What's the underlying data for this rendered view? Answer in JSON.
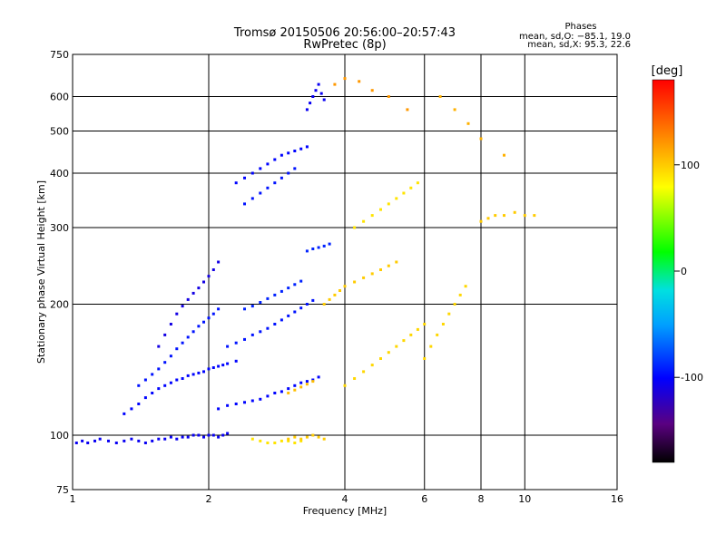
{
  "chart_data": {
    "type": "scatter",
    "title": "Tromsø 20150506 20:56:00–20:57:43",
    "subtitle": "RwPretec (8p)",
    "xlabel": "Frequency [MHz]",
    "ylabel": "Stationary phase Virtual Height [km]",
    "x_scale": "log",
    "y_scale": "log",
    "xlim": [
      1,
      16
    ],
    "ylim": [
      75,
      750
    ],
    "x_ticks": [
      1,
      2,
      4,
      6,
      8,
      10,
      16
    ],
    "y_ticks": [
      75,
      100,
      200,
      300,
      400,
      500,
      600,
      750
    ],
    "grid": true,
    "stats": {
      "heading": "Phases",
      "o_line": "mean, sd,O: −85.1, 19.0",
      "x_line": "mean, sd,X:  95.3, 22.6"
    },
    "colorbar": {
      "label": "[deg]",
      "range": [
        -180,
        180
      ],
      "ticks": [
        100,
        0,
        -100
      ]
    },
    "series": [
      {
        "x": [
          1.02,
          1.05,
          1.08,
          1.12,
          1.15,
          1.2,
          1.25,
          1.3,
          1.35,
          1.4,
          1.45,
          1.5,
          1.55,
          1.6,
          1.65,
          1.7,
          1.75,
          1.8,
          1.85,
          1.9,
          1.95,
          2.0,
          2.05,
          2.1,
          2.15,
          2.2
        ],
        "y": [
          96,
          97,
          96,
          97,
          98,
          97,
          96,
          97,
          98,
          97,
          96,
          97,
          98,
          98,
          99,
          98,
          99,
          99,
          100,
          100,
          99,
          100,
          100,
          99,
          100,
          101
        ],
        "phase": -105
      },
      {
        "x": [
          1.3,
          1.35,
          1.4,
          1.45,
          1.5,
          1.55,
          1.6,
          1.65,
          1.7,
          1.75,
          1.8,
          1.85,
          1.9,
          1.95,
          2.0,
          2.05,
          2.1,
          2.15,
          2.2,
          2.3
        ],
        "y": [
          112,
          115,
          118,
          122,
          125,
          128,
          130,
          132,
          134,
          135,
          137,
          138,
          139,
          140,
          142,
          143,
          144,
          145,
          146,
          148
        ],
        "phase": -100
      },
      {
        "x": [
          1.4,
          1.45,
          1.5,
          1.55,
          1.6,
          1.65,
          1.7,
          1.75,
          1.8,
          1.85,
          1.9,
          1.95,
          2.0,
          2.05,
          2.1
        ],
        "y": [
          130,
          134,
          138,
          142,
          147,
          152,
          158,
          163,
          168,
          173,
          178,
          182,
          186,
          190,
          195
        ],
        "phase": -95
      },
      {
        "x": [
          1.55,
          1.6,
          1.65,
          1.7,
          1.75,
          1.8,
          1.85,
          1.9,
          1.95,
          2.0,
          2.05,
          2.1
        ],
        "y": [
          160,
          170,
          180,
          190,
          198,
          205,
          212,
          218,
          225,
          232,
          240,
          250
        ],
        "phase": -110
      },
      {
        "x": [
          2.1,
          2.2,
          2.3,
          2.4,
          2.5,
          2.6,
          2.7,
          2.8,
          2.9,
          3.0,
          3.1,
          3.2,
          3.3,
          3.4,
          3.5
        ],
        "y": [
          115,
          117,
          118,
          119,
          120,
          121,
          123,
          125,
          126,
          128,
          130,
          132,
          133,
          134,
          136
        ],
        "phase": -100
      },
      {
        "x": [
          2.2,
          2.3,
          2.4,
          2.5,
          2.6,
          2.7,
          2.8,
          2.9,
          3.0,
          3.1,
          3.2,
          3.3,
          3.4
        ],
        "y": [
          160,
          163,
          166,
          170,
          173,
          176,
          180,
          184,
          188,
          192,
          196,
          200,
          204
        ],
        "phase": -95
      },
      {
        "x": [
          2.4,
          2.5,
          2.6,
          2.7,
          2.8,
          2.9,
          3.0,
          3.1,
          3.2
        ],
        "y": [
          195,
          198,
          202,
          206,
          210,
          214,
          218,
          222,
          226
        ],
        "phase": -90
      },
      {
        "x": [
          2.3,
          2.4,
          2.5,
          2.6,
          2.7,
          2.8,
          2.9,
          3.0,
          3.1,
          3.2,
          3.3
        ],
        "y": [
          380,
          390,
          400,
          410,
          420,
          430,
          440,
          445,
          450,
          455,
          460
        ],
        "phase": -100
      },
      {
        "x": [
          2.4,
          2.5,
          2.6,
          2.7,
          2.8,
          2.9,
          3.0,
          3.1
        ],
        "y": [
          340,
          350,
          360,
          370,
          380,
          390,
          400,
          410
        ],
        "phase": -95
      },
      {
        "x": [
          3.3,
          3.35,
          3.4,
          3.45,
          3.5,
          3.55,
          3.6
        ],
        "y": [
          560,
          580,
          600,
          620,
          640,
          610,
          590
        ],
        "phase": -105
      },
      {
        "x": [
          3.3,
          3.4,
          3.5,
          3.6,
          3.7
        ],
        "y": [
          265,
          268,
          270,
          272,
          275
        ],
        "phase": -90
      },
      {
        "x": [
          2.5,
          2.6,
          2.7,
          2.8,
          2.9,
          3.0,
          3.1,
          3.2
        ],
        "y": [
          98,
          97,
          96,
          96,
          97,
          97,
          96,
          97
        ],
        "phase": 90
      },
      {
        "x": [
          3.0,
          3.1,
          3.2,
          3.3,
          3.4,
          3.5,
          3.6
        ],
        "y": [
          98,
          99,
          98,
          99,
          100,
          99,
          98
        ],
        "phase": 100
      },
      {
        "x": [
          3.0,
          3.1,
          3.2,
          3.3,
          3.4
        ],
        "y": [
          125,
          127,
          129,
          131,
          133
        ],
        "phase": 105
      },
      {
        "x": [
          3.6,
          3.7,
          3.8,
          3.9,
          4.0,
          4.2,
          4.4,
          4.6,
          4.8,
          5.0,
          5.2
        ],
        "y": [
          200,
          205,
          210,
          215,
          220,
          225,
          230,
          235,
          240,
          245,
          250
        ],
        "phase": 100
      },
      {
        "x": [
          4.0,
          4.2,
          4.4,
          4.6,
          4.8,
          5.0,
          5.2,
          5.4,
          5.6,
          5.8,
          6.0
        ],
        "y": [
          130,
          135,
          140,
          145,
          150,
          155,
          160,
          165,
          170,
          175,
          180
        ],
        "phase": 95
      },
      {
        "x": [
          4.2,
          4.4,
          4.6,
          4.8,
          5.0,
          5.2,
          5.4,
          5.6,
          5.8
        ],
        "y": [
          300,
          310,
          320,
          330,
          340,
          350,
          360,
          370,
          380
        ],
        "phase": 90
      },
      {
        "x": [
          6.0,
          6.2,
          6.4,
          6.6,
          6.8,
          7.0,
          7.2,
          7.4
        ],
        "y": [
          150,
          160,
          170,
          180,
          190,
          200,
          210,
          220
        ],
        "phase": 95
      },
      {
        "x": [
          8.0,
          8.3,
          8.6,
          9.0,
          9.5,
          10.0,
          10.5
        ],
        "y": [
          310,
          315,
          320,
          320,
          325,
          320,
          320
        ],
        "phase": 100
      },
      {
        "x": [
          3.8,
          4.0,
          4.3,
          4.6,
          5.0,
          5.5
        ],
        "y": [
          640,
          660,
          650,
          620,
          600,
          560
        ],
        "phase": 120
      },
      {
        "x": [
          6.5,
          7.0,
          7.5,
          8.0,
          9.0
        ],
        "y": [
          600,
          560,
          520,
          480,
          440
        ],
        "phase": 110
      }
    ]
  }
}
